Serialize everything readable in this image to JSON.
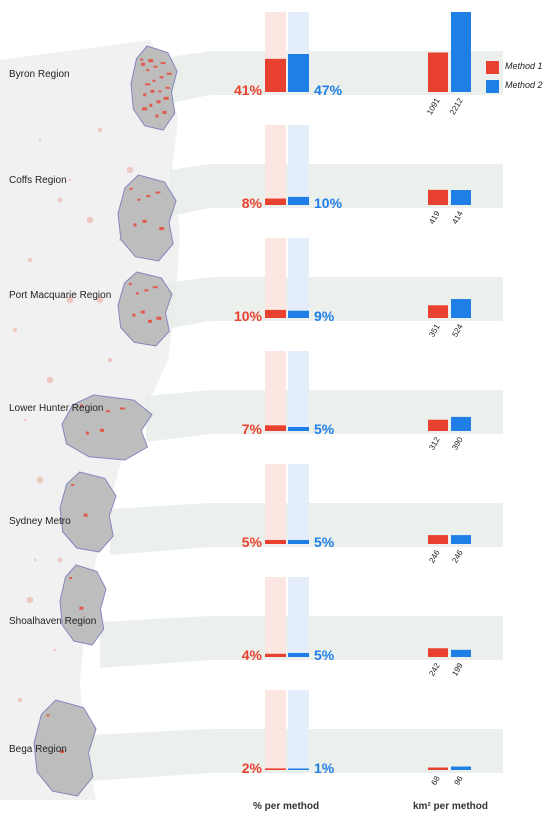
{
  "colors": {
    "method1": "#e8412f",
    "method2": "#1f7fe6",
    "method1_light": "#fbe6e1",
    "method2_light": "#e4eefb",
    "band": "#e9ede9",
    "map_fill": "#b8b8b8",
    "map_hot": "#e84a3a"
  },
  "legend": {
    "method1": "Method 1",
    "method2": "Method 2"
  },
  "footer": {
    "pct_label": "% per method",
    "km_label": "km² per method"
  },
  "chart_data": {
    "type": "bar",
    "title": "",
    "categories": [
      "Byron Region",
      "Coffs Region",
      "Port Macquarie Region",
      "Lower Hunter Region",
      "Sydney Metro",
      "Shoalhaven Region",
      "Bega Region"
    ],
    "series": [
      {
        "name": "Method 1",
        "percent": [
          41,
          8,
          10,
          7,
          5,
          4,
          2
        ],
        "percent_labels": [
          "41%",
          "8%",
          "10%",
          "7%",
          "5%",
          "4%",
          "2%"
        ],
        "km2": [
          1091,
          419,
          351,
          312,
          246,
          242,
          68
        ],
        "km2_labels": [
          "1091",
          "419",
          "351",
          "312",
          "246",
          "242",
          "68"
        ]
      },
      {
        "name": "Method 2",
        "percent": [
          47,
          10,
          9,
          5,
          5,
          5,
          1
        ],
        "percent_labels": [
          "47%",
          "10%",
          "9%",
          "5%",
          "5%",
          "5%",
          "1%"
        ],
        "km2": [
          2212,
          414,
          524,
          390,
          246,
          199,
          96
        ],
        "km2_labels": [
          "2212",
          "414",
          "524",
          "390",
          "246",
          "199",
          "96"
        ]
      }
    ],
    "xlabel_left": "% per method",
    "xlabel_right": "km² per method",
    "percent_scale_max": 100,
    "grid": false,
    "legend_position": "top-right"
  }
}
